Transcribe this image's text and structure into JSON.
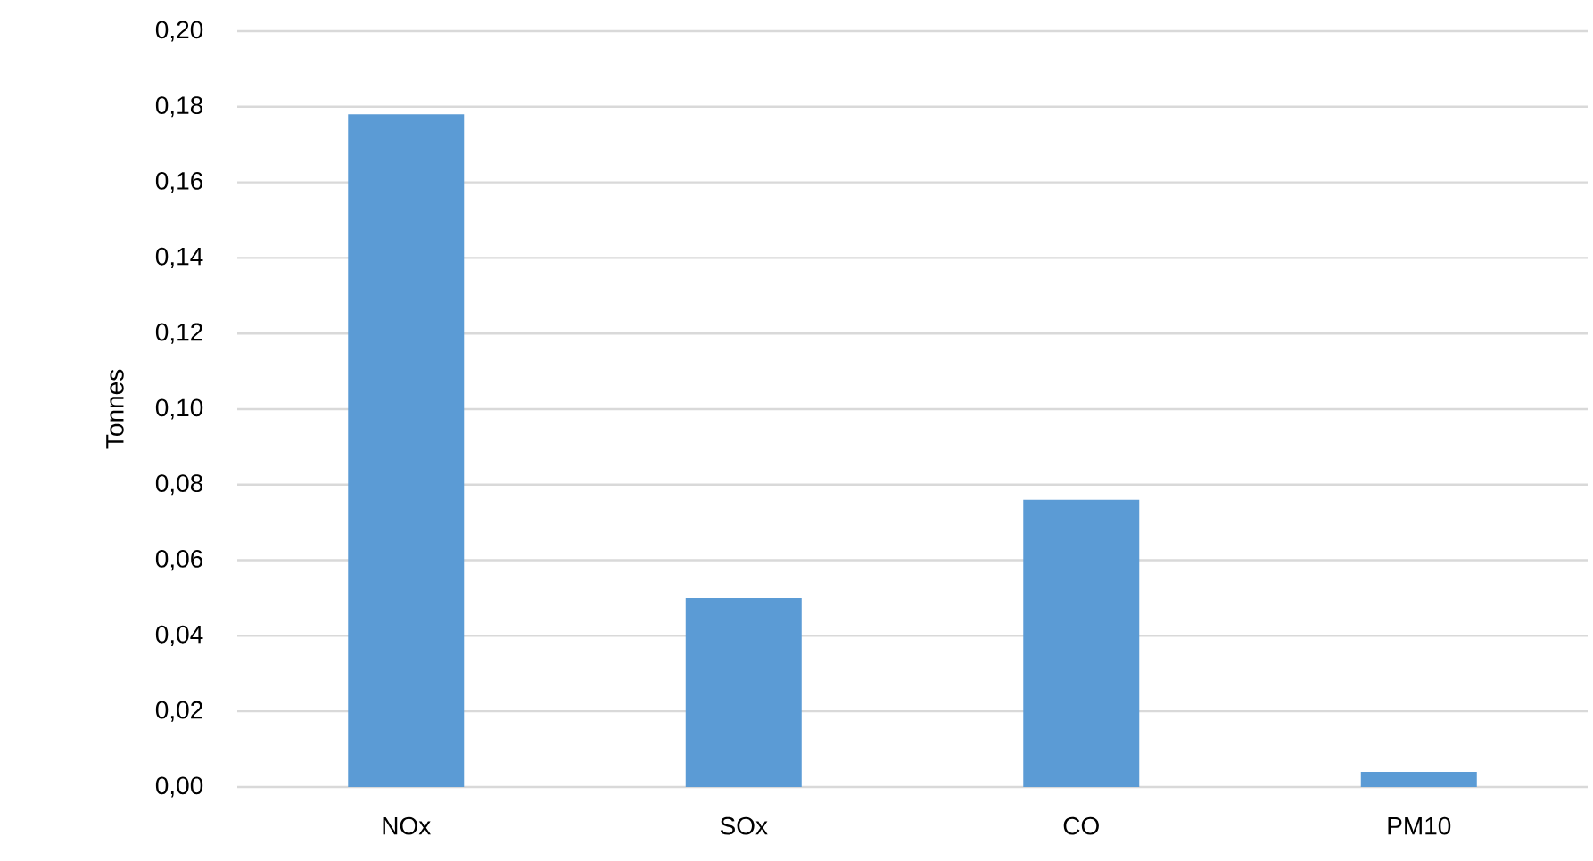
{
  "chart_data": {
    "type": "bar",
    "ylabel": "Tonnes",
    "categories": [
      "NOx",
      "SOx",
      "CO",
      "PM10"
    ],
    "values": [
      0.178,
      0.05,
      0.076,
      0.004
    ],
    "color": "#5b9bd5",
    "ylim": [
      0,
      0.2
    ],
    "yticks": [
      {
        "value": 0,
        "label": "0,00"
      },
      {
        "value": 0.02,
        "label": "0,02"
      },
      {
        "value": 0.04,
        "label": "0,04"
      },
      {
        "value": 0.06,
        "label": "0,06"
      },
      {
        "value": 0.08,
        "label": "0,08"
      },
      {
        "value": 0.1,
        "label": "0,10"
      },
      {
        "value": 0.12,
        "label": "0,12"
      },
      {
        "value": 0.14,
        "label": "0,14"
      },
      {
        "value": 0.16,
        "label": "0,16"
      },
      {
        "value": 0.18,
        "label": "0,18"
      },
      {
        "value": 0.2,
        "label": "0,20"
      }
    ],
    "grid": "y"
  }
}
